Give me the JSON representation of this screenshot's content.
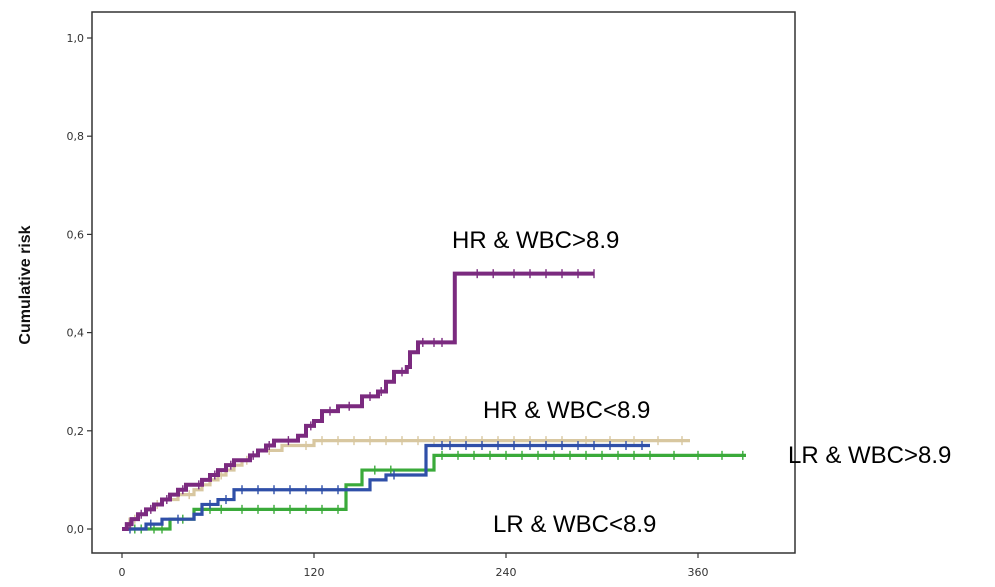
{
  "chart_data": {
    "type": "line",
    "step": true,
    "title": "",
    "xlabel": "",
    "ylabel": "Cumulative risk",
    "xlim": [
      0,
      360
    ],
    "ylim": [
      0,
      1
    ],
    "x_ticks": [
      0,
      120,
      240,
      360
    ],
    "x_tick_labels": [
      "0",
      "120",
      "240",
      "360"
    ],
    "y_ticks": [
      0,
      0.2,
      0.4,
      0.6,
      0.8,
      1.0
    ],
    "y_tick_labels": [
      "0,0",
      "0,2",
      "0,4",
      "0,6",
      "0,8",
      "1,0"
    ],
    "grid": false,
    "legend": "none (series labelled directly on plot)",
    "series": [
      {
        "name": "HR & WBC>8.9",
        "color": "#7b2a7f",
        "x": [
          0,
          3,
          6,
          10,
          15,
          20,
          25,
          30,
          35,
          40,
          45,
          50,
          55,
          60,
          65,
          70,
          75,
          80,
          85,
          90,
          95,
          100,
          110,
          115,
          120,
          125,
          135,
          150,
          160,
          165,
          170,
          178,
          180,
          185,
          190,
          205,
          208,
          295
        ],
        "y": [
          0,
          0.01,
          0.02,
          0.03,
          0.04,
          0.05,
          0.06,
          0.07,
          0.08,
          0.09,
          0.09,
          0.1,
          0.11,
          0.12,
          0.13,
          0.14,
          0.14,
          0.15,
          0.16,
          0.17,
          0.18,
          0.18,
          0.19,
          0.21,
          0.22,
          0.24,
          0.25,
          0.27,
          0.28,
          0.3,
          0.32,
          0.33,
          0.36,
          0.38,
          0.38,
          0.38,
          0.52,
          0.52
        ],
        "censor_x": [
          5,
          12,
          18,
          28,
          38,
          48,
          58,
          68,
          82,
          92,
          104,
          118,
          130,
          142,
          155,
          162,
          175,
          188,
          195,
          200,
          222,
          232,
          245,
          255,
          265,
          275,
          285,
          295
        ]
      },
      {
        "name": "HR & WBC<8.9",
        "color": "#d8c7a0",
        "x": [
          0,
          5,
          10,
          15,
          20,
          25,
          30,
          35,
          40,
          45,
          50,
          55,
          60,
          65,
          70,
          75,
          80,
          85,
          90,
          95,
          100,
          110,
          120,
          355
        ],
        "y": [
          0,
          0.02,
          0.03,
          0.04,
          0.05,
          0.06,
          0.06,
          0.07,
          0.07,
          0.08,
          0.09,
          0.1,
          0.11,
          0.12,
          0.13,
          0.14,
          0.15,
          0.16,
          0.16,
          0.16,
          0.17,
          0.17,
          0.18,
          0.18
        ],
        "censor_x": [
          8,
          22,
          42,
          62,
          78,
          92,
          115,
          125,
          135,
          145,
          155,
          165,
          175,
          185,
          195,
          205,
          215,
          225,
          235,
          245,
          255,
          265,
          275,
          290,
          305,
          320,
          335,
          350
        ]
      },
      {
        "name": "LR & WBC>8.9",
        "color": "#3aaa3a",
        "x": [
          0,
          10,
          30,
          45,
          70,
          140,
          150,
          180,
          195,
          390
        ],
        "y": [
          0,
          0.0,
          0.02,
          0.04,
          0.04,
          0.09,
          0.12,
          0.12,
          0.15,
          0.15
        ],
        "censor_x": [
          8,
          12,
          20,
          25,
          38,
          55,
          62,
          75,
          85,
          95,
          105,
          115,
          125,
          135,
          158,
          168,
          200,
          210,
          220,
          230,
          240,
          250,
          260,
          270,
          280,
          290,
          300,
          310,
          320,
          330,
          345,
          360,
          375,
          388
        ]
      },
      {
        "name": "LR & WBC<8.9",
        "color": "#2f4fa8",
        "x": [
          0,
          15,
          25,
          45,
          50,
          60,
          70,
          145,
          155,
          165,
          180,
          190,
          330
        ],
        "y": [
          0,
          0.01,
          0.02,
          0.03,
          0.05,
          0.06,
          0.08,
          0.08,
          0.1,
          0.11,
          0.11,
          0.17,
          0.17
        ],
        "censor_x": [
          5,
          18,
          35,
          55,
          65,
          75,
          85,
          95,
          105,
          115,
          125,
          135,
          170,
          200,
          205,
          215,
          225,
          235,
          245,
          255,
          265,
          275,
          285,
          295,
          305,
          315,
          325
        ]
      }
    ],
    "annotations": [
      {
        "text": "HR & WBC>8.9",
        "series": "HR & WBC>8.9"
      },
      {
        "text": "HR & WBC<8.9",
        "series": "HR & WBC<8.9"
      },
      {
        "text": "LR & WBC>8.9",
        "series": "LR & WBC>8.9"
      },
      {
        "text": "LR & WBC<8.9",
        "series": "LR & WBC<8.9"
      }
    ]
  }
}
